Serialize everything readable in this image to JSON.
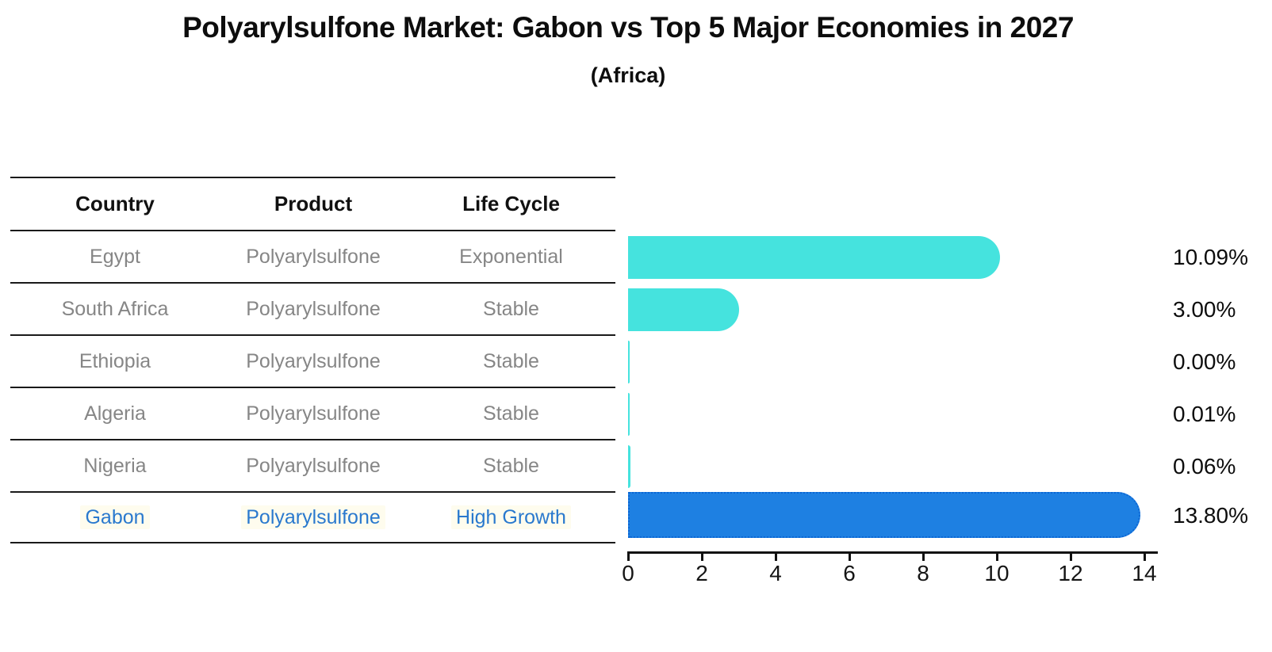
{
  "title": "Polyarylsulfone Market: Gabon vs Top 5 Major Economies in 2027",
  "subtitle": "(Africa)",
  "table": {
    "headers": {
      "country": "Country",
      "product": "Product",
      "life_cycle": "Life Cycle"
    },
    "rows": [
      {
        "country": "Egypt",
        "product": "Polyarylsulfone",
        "life_cycle": "Exponential",
        "highlighted": false
      },
      {
        "country": "South Africa",
        "product": "Polyarylsulfone",
        "life_cycle": "Stable",
        "highlighted": false
      },
      {
        "country": "Ethiopia",
        "product": "Polyarylsulfone",
        "life_cycle": "Stable",
        "highlighted": false
      },
      {
        "country": "Algeria",
        "product": "Polyarylsulfone",
        "life_cycle": "Stable",
        "highlighted": false
      },
      {
        "country": "Nigeria",
        "product": "Polyarylsulfone",
        "life_cycle": "Stable",
        "highlighted": false
      },
      {
        "country": "Gabon",
        "product": "Polyarylsulfone",
        "life_cycle": "High Growth",
        "highlighted": true
      }
    ]
  },
  "chart_data": {
    "type": "bar",
    "orientation": "horizontal",
    "categories": [
      "Egypt",
      "South Africa",
      "Ethiopia",
      "Algeria",
      "Nigeria",
      "Gabon"
    ],
    "values": [
      10.09,
      3.0,
      0.0,
      0.01,
      0.06,
      13.8
    ],
    "value_labels": [
      "10.09%",
      "3.00%",
      "0.00%",
      "0.01%",
      "0.06%",
      "13.80%"
    ],
    "x_ticks": [
      0,
      2,
      4,
      6,
      8,
      10,
      12,
      14
    ],
    "xlim": [
      0,
      14.4
    ],
    "grid": false,
    "legend": "none",
    "highlight_index": 5,
    "colors": {
      "bar_default": "#45e3de",
      "bar_highlight": "#1e80e2",
      "bar_highlight_border": "#0c66d4",
      "highlight_text": "#2a79ce",
      "table_text": "#868686",
      "axis_text": "#0d0d0d"
    }
  }
}
